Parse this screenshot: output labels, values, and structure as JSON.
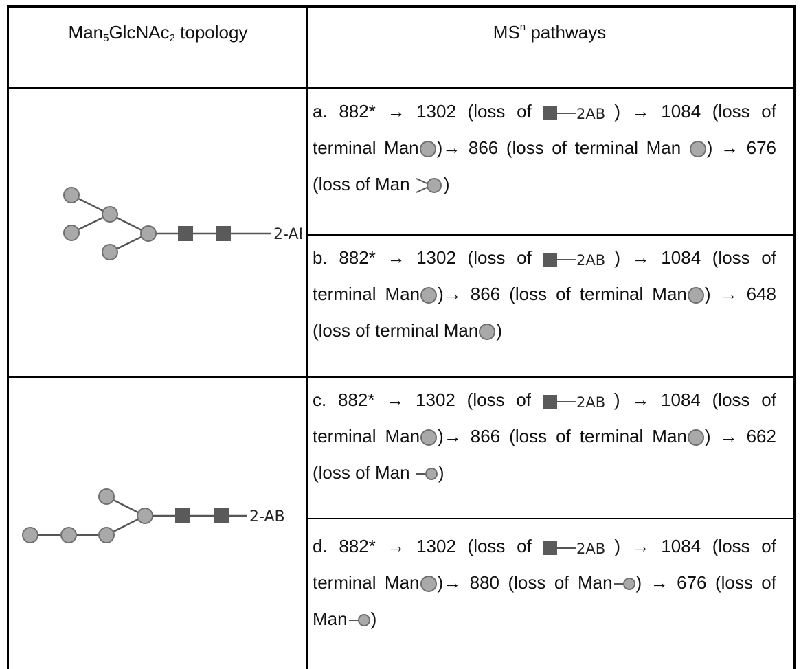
{
  "header": {
    "topology_prefix": "Man",
    "topology_sub1": "5",
    "topology_mid": "GlcNAc",
    "topology_sub2": "2",
    "topology_suffix": " topology",
    "pathways_prefix": "MS",
    "pathways_sup": "n",
    "pathways_suffix": " pathways"
  },
  "glycan_label": "2-AB",
  "icon_label": "2AB",
  "rows": [
    {
      "t1": "a. 882* → 1302 (loss of ",
      "t2": ") → 1084 (loss of terminal Man",
      "t3": ")→ 866 (loss of terminal Man ",
      "t4": ") → 676 (loss of Man ",
      "t5": ")"
    },
    {
      "t1": "b. 882* → 1302 (loss of ",
      "t2": ") → 1084 (loss of terminal Man",
      "t3": ")→ 866 (loss of terminal Man",
      "t4": ") → 648 (loss of terminal Man",
      "t5": ")"
    },
    {
      "t1": "c. 882* → 1302 (loss of ",
      "t2": ") → 1084 (loss of terminal Man",
      "t3": ")→ 866 (loss of terminal Man",
      "t4": ") → 662 (loss of Man ",
      "t5": ")"
    },
    {
      "t1": "d. 882* → 1302 (loss of ",
      "t2": ") → 1084 (loss of terminal Man",
      "t3": ")→ 880 (loss of Man",
      "t4": ") → 676 (loss of Man",
      "t5": ")"
    }
  ],
  "colors": {
    "mannose_fill": "#a9a9a9",
    "mannose_stroke": "#6f6f6f",
    "glcnac_fill": "#5a5a5a",
    "border": "#000000"
  }
}
